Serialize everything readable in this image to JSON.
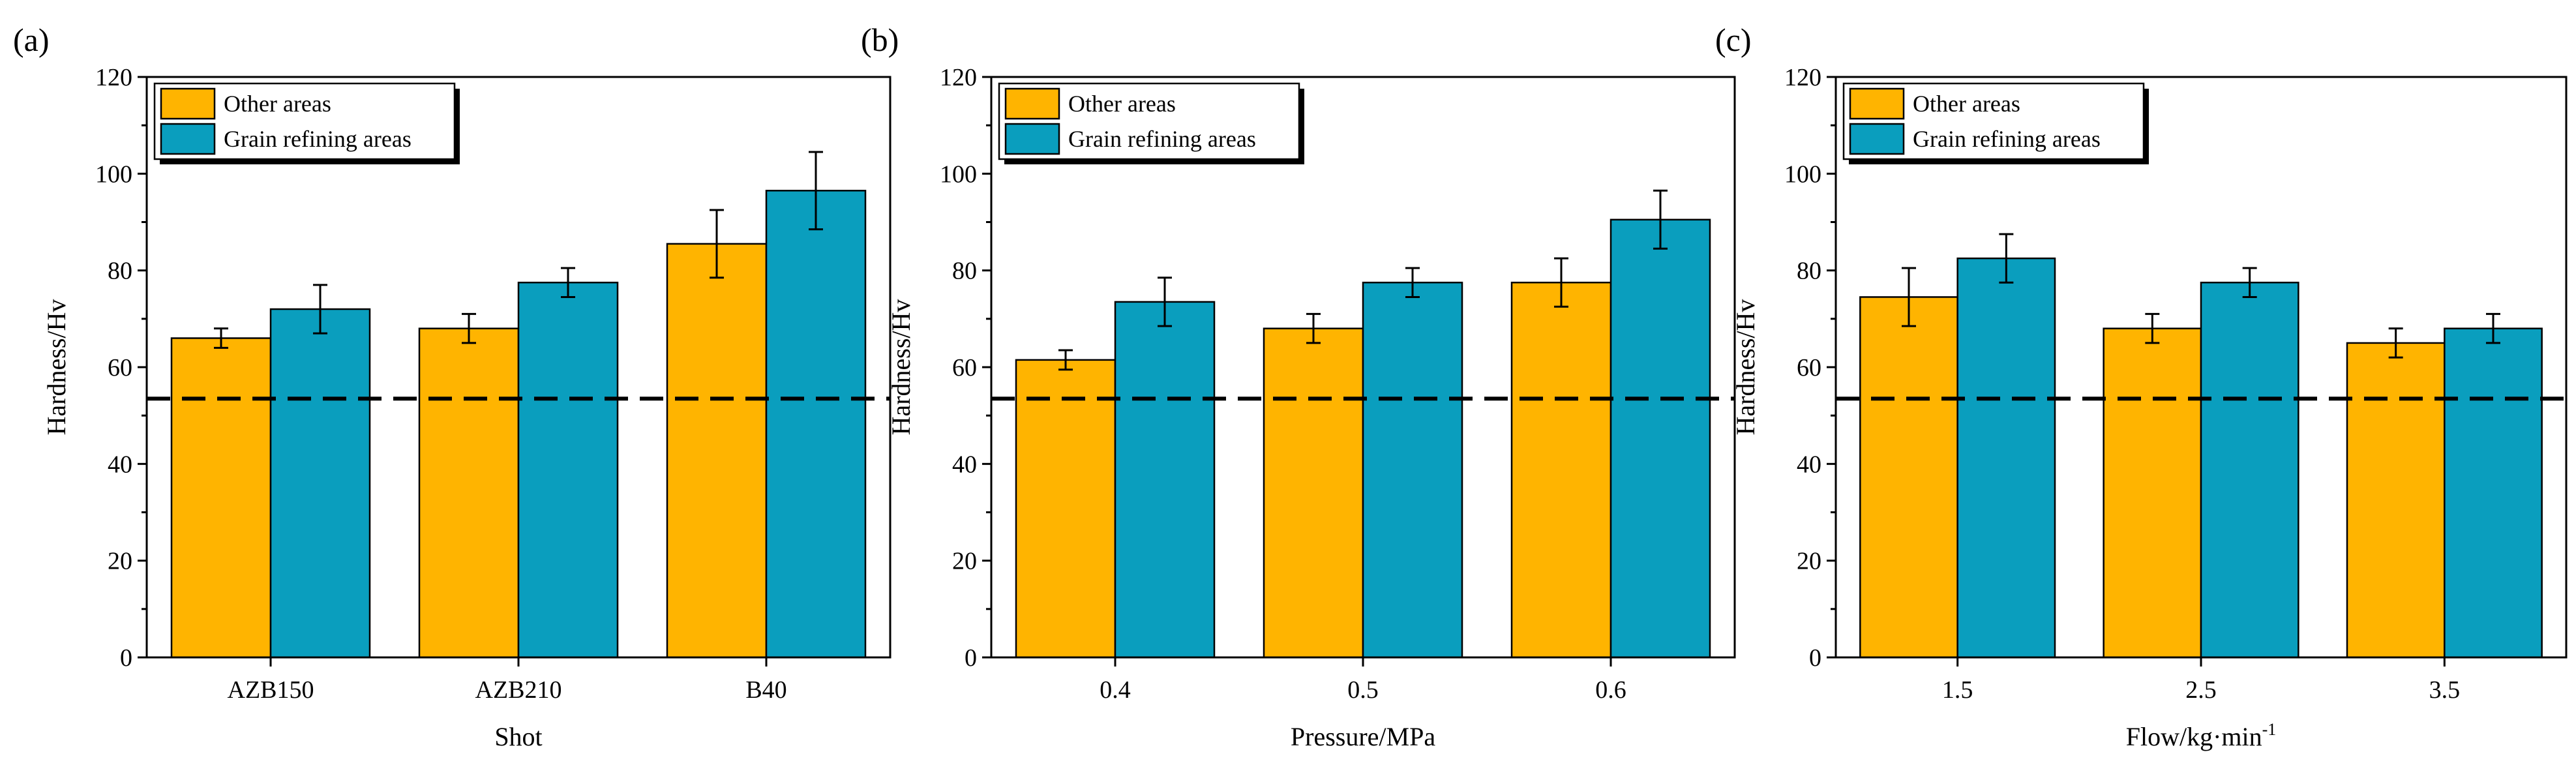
{
  "colors": {
    "other": "#FFB400",
    "grain": "#0A9EBE",
    "error": "#000000",
    "baseline": "#000000"
  },
  "chart_data": [
    {
      "type": "bar",
      "panel_label": "(a)",
      "title": "",
      "xlabel": "Shot",
      "ylabel": "Hardness/Hv",
      "categories": [
        "AZB150",
        "AZB210",
        "B40"
      ],
      "ylim": [
        0,
        120
      ],
      "yticks": [
        0,
        20,
        40,
        60,
        80,
        100,
        120
      ],
      "reference_line": 53.5,
      "legend_position": "top-left",
      "series": [
        {
          "name": "Other areas",
          "values": [
            66,
            68,
            85.5
          ],
          "errors": [
            2,
            3,
            7
          ]
        },
        {
          "name": "Grain refining areas",
          "values": [
            72,
            77.5,
            96.5
          ],
          "errors": [
            5,
            3,
            8
          ]
        }
      ]
    },
    {
      "type": "bar",
      "panel_label": "(b)",
      "title": "",
      "xlabel": "Pressure/MPa",
      "ylabel": "Hardness/Hv",
      "categories": [
        "0.4",
        "0.5",
        "0.6"
      ],
      "ylim": [
        0,
        120
      ],
      "yticks": [
        0,
        20,
        40,
        60,
        80,
        100,
        120
      ],
      "reference_line": 53.5,
      "legend_position": "top-left",
      "series": [
        {
          "name": "Other areas",
          "values": [
            61.5,
            68,
            77.5
          ],
          "errors": [
            2,
            3,
            5
          ]
        },
        {
          "name": "Grain refining areas",
          "values": [
            73.5,
            77.5,
            90.5
          ],
          "errors": [
            5,
            3,
            6
          ]
        }
      ]
    },
    {
      "type": "bar",
      "panel_label": "(c)",
      "title": "",
      "xlabel": "Flow/kg·min",
      "xlabel_superscript": "-1",
      "ylabel": "Hardness/Hv",
      "categories": [
        "1.5",
        "2.5",
        "3.5"
      ],
      "ylim": [
        0,
        120
      ],
      "yticks": [
        0,
        20,
        40,
        60,
        80,
        100,
        120
      ],
      "reference_line": 53.5,
      "legend_position": "top-left",
      "series": [
        {
          "name": "Other areas",
          "values": [
            74.5,
            68,
            65
          ],
          "errors": [
            6,
            3,
            3
          ]
        },
        {
          "name": "Grain refining areas",
          "values": [
            82.5,
            77.5,
            68
          ],
          "errors": [
            5,
            3,
            3
          ]
        }
      ]
    }
  ]
}
